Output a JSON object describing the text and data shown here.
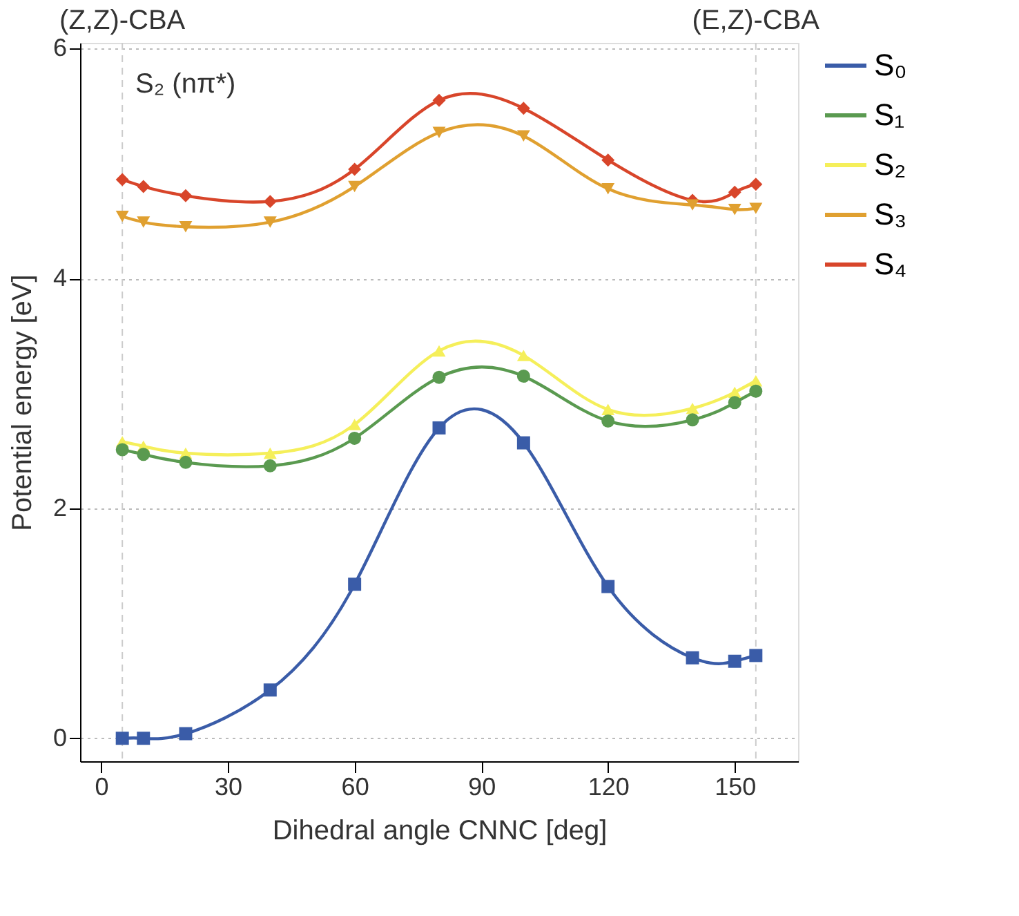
{
  "chart_data": {
    "type": "line",
    "xlabel": "Dihedral angle CNNC [deg]",
    "ylabel": "Potential energy [eV]",
    "x": [
      5,
      10,
      20,
      40,
      60,
      80,
      100,
      120,
      140,
      150,
      155
    ],
    "series": [
      {
        "name": "S₀",
        "color": "#3a5ca8",
        "marker": "square",
        "values": [
          0.0,
          0.0,
          0.04,
          0.42,
          1.34,
          2.7,
          2.57,
          1.32,
          0.7,
          0.67,
          0.72
        ]
      },
      {
        "name": "S₁",
        "color": "#5a9a50",
        "marker": "circle",
        "values": [
          2.51,
          2.47,
          2.4,
          2.37,
          2.61,
          3.14,
          3.15,
          2.76,
          2.77,
          2.92,
          3.02
        ]
      },
      {
        "name": "S₂",
        "color": "#f5ef5a",
        "marker": "triangle",
        "values": [
          2.58,
          2.54,
          2.48,
          2.48,
          2.73,
          3.37,
          3.33,
          2.86,
          2.87,
          3.01,
          3.11
        ]
      },
      {
        "name": "S₃",
        "color": "#e0a030",
        "marker": "triangle-down",
        "values": [
          4.54,
          4.49,
          4.45,
          4.49,
          4.8,
          5.27,
          5.24,
          4.78,
          4.64,
          4.6,
          4.61
        ]
      },
      {
        "name": "S₄",
        "color": "#d8452a",
        "marker": "diamond",
        "values": [
          4.86,
          4.8,
          4.72,
          4.67,
          4.95,
          5.55,
          5.48,
          5.03,
          4.68,
          4.75,
          4.82
        ]
      }
    ],
    "xlim": [
      -5,
      165
    ],
    "xticks": [
      0,
      30,
      60,
      90,
      120,
      150
    ],
    "ylim": [
      -0.2,
      6.05
    ],
    "yticks": [
      0,
      2,
      4,
      6
    ],
    "grid": "y",
    "legend": "right",
    "ref_lines": [
      {
        "axis": "x",
        "value": 5,
        "label": "(Z,Z)-CBA",
        "color": "#cccccc",
        "line_style": "dashed"
      },
      {
        "axis": "x",
        "value": 155,
        "label": "(E,Z)-CBA",
        "color": "#cccccc",
        "line_style": "dashed"
      }
    ],
    "annotations": [
      "S₂ (nπ*)"
    ]
  }
}
